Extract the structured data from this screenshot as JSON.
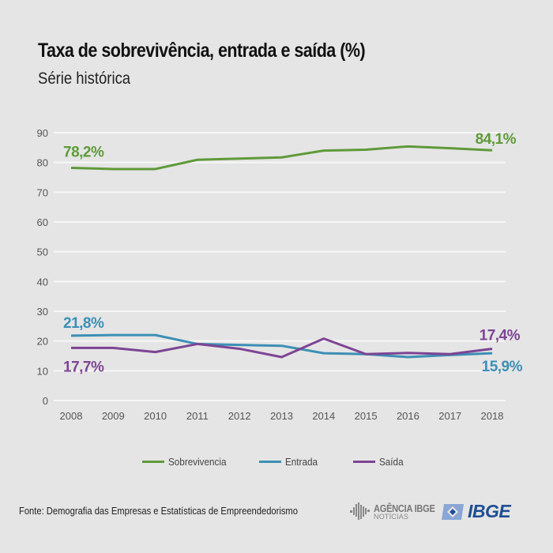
{
  "header": {
    "title": "Taxa de sobrevivência, entrada e saída (%)",
    "subtitle": "Série histórica"
  },
  "chart_data": {
    "type": "line",
    "title": "Taxa de sobrevivência, entrada e saída (%)",
    "subtitle": "Série histórica",
    "xlabel": "",
    "ylabel": "",
    "x": [
      "2008",
      "2009",
      "2010",
      "2011",
      "2012",
      "2013",
      "2014",
      "2015",
      "2016",
      "2017",
      "2018"
    ],
    "ylim": [
      0,
      90
    ],
    "yticks": [
      0,
      10,
      20,
      30,
      40,
      50,
      60,
      70,
      80,
      90
    ],
    "grid": true,
    "legend_position": "bottom",
    "series": [
      {
        "name": "Sobrevivencia",
        "color": "#5f9a3a",
        "values": [
          78.2,
          77.8,
          77.8,
          80.9,
          81.3,
          81.7,
          84.0,
          84.3,
          85.4,
          84.8,
          84.1
        ],
        "annotations": [
          {
            "index": 0,
            "text": "78,2%"
          },
          {
            "index": 10,
            "text": "84,1%"
          }
        ]
      },
      {
        "name": "Entrada",
        "color": "#3d8fb5",
        "values": [
          21.8,
          22.0,
          22.0,
          19.0,
          18.7,
          18.4,
          15.9,
          15.6,
          14.6,
          15.3,
          15.9
        ],
        "annotations": [
          {
            "index": 0,
            "text": "21,8%"
          },
          {
            "index": 10,
            "text": "15,9%"
          }
        ]
      },
      {
        "name": "Saída",
        "color": "#7d4494",
        "values": [
          17.7,
          17.7,
          16.3,
          19.0,
          17.4,
          14.6,
          20.8,
          15.6,
          16.0,
          15.6,
          17.4
        ],
        "annotations": [
          {
            "index": 0,
            "text": "17,7%"
          },
          {
            "index": 10,
            "text": "17,4%"
          }
        ]
      }
    ]
  },
  "legend": {
    "items": [
      {
        "label": "Sobrevivencia",
        "color": "#5f9a3a"
      },
      {
        "label": "Entrada",
        "color": "#3d8fb5"
      },
      {
        "label": "Saída",
        "color": "#7d4494"
      }
    ]
  },
  "footer": {
    "source": "Fonte: Demografia das Empresas e Estatísticas de Empreendedorismo",
    "logo_agencia_main": "AGÊNCIA IBGE",
    "logo_agencia_sub": "NOTÍCIAS",
    "logo_ibge": "IBGE"
  }
}
